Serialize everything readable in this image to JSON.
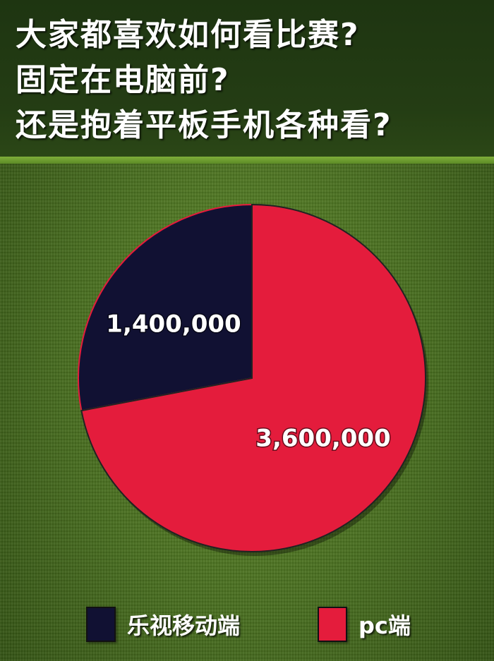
{
  "header": {
    "lines": [
      "大家都喜欢如何看比赛?",
      "固定在电脑前?",
      "还是抱着平板手机各种看?"
    ]
  },
  "chart_data": {
    "type": "pie",
    "title": "",
    "slices": [
      {
        "label": "乐视移动端",
        "value": 1400000,
        "display": "1,400,000",
        "color": "#111133"
      },
      {
        "label": "pc端",
        "value": 3600000,
        "display": "3,600,000",
        "color": "#e41c3c"
      }
    ],
    "legend_position": "bottom"
  }
}
